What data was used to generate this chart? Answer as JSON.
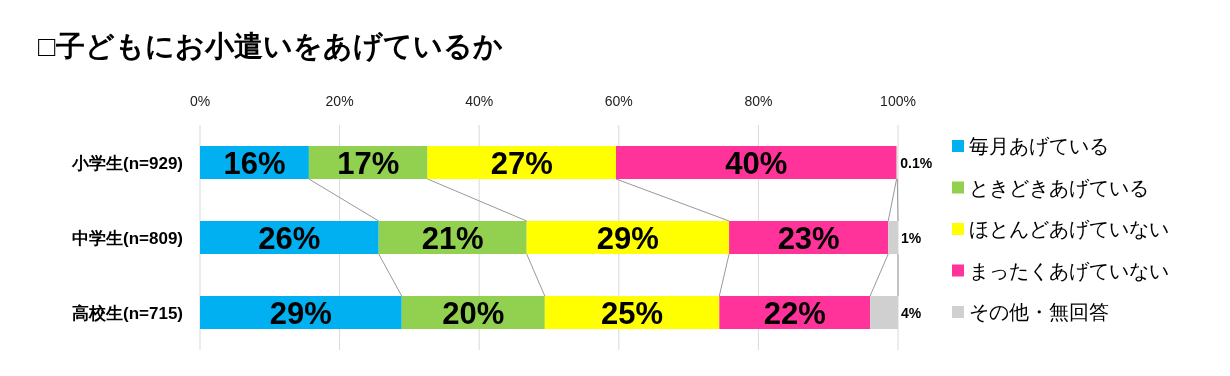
{
  "chart_data": {
    "type": "bar",
    "orientation": "horizontal",
    "stacked": true,
    "title": "□子どもにお小遣いをあげているか",
    "categories": [
      "小学生(n=929)",
      "中学生(n=809)",
      "高校生(n=715)"
    ],
    "series": [
      {
        "name": "毎月あげている",
        "color": "#00b0f0",
        "values": [
          15.6,
          25.6,
          28.9
        ],
        "value_labels": [
          "16%",
          "26%",
          "29%"
        ]
      },
      {
        "name": "ときどきあげている",
        "color": "#92d050",
        "values": [
          17.0,
          21.2,
          20.5
        ],
        "value_labels": [
          "17%",
          "21%",
          "20%"
        ]
      },
      {
        "name": "ほとんどあげていない",
        "color": "#ffff00",
        "values": [
          27.0,
          29.0,
          25.0
        ],
        "value_labels": [
          "27%",
          "29%",
          "25%"
        ]
      },
      {
        "name": "まったくあげていない",
        "color": "#ff3399",
        "values": [
          40.2,
          22.8,
          21.6
        ],
        "value_labels": [
          "40%",
          "23%",
          "22%"
        ]
      },
      {
        "name": "その他・無回答",
        "color": "#d0d0d0",
        "values": [
          0.1,
          1.4,
          4.0
        ],
        "value_labels": [
          "0.1%",
          "1%",
          "4%"
        ]
      }
    ],
    "xlim": [
      0,
      100
    ],
    "xticks": [
      {
        "value": 0,
        "label": "0%"
      },
      {
        "value": 20,
        "label": "20%"
      },
      {
        "value": 40,
        "label": "40%"
      },
      {
        "value": 60,
        "label": "60%"
      },
      {
        "value": 80,
        "label": "80%"
      },
      {
        "value": 100,
        "label": "100%"
      }
    ],
    "grid": "x",
    "legend": "right"
  }
}
